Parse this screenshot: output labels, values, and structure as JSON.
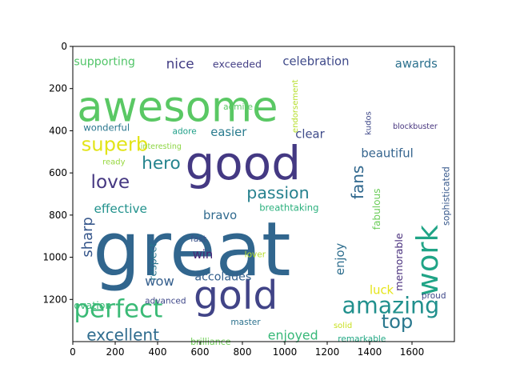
{
  "chart_data": {
    "type": "wordcloud",
    "title": "",
    "xlabel": "",
    "ylabel": "",
    "xlim": [
      0,
      1800
    ],
    "ylim": [
      1400,
      0
    ],
    "x_ticks": [
      "0",
      "200",
      "400",
      "600",
      "800",
      "1000",
      "1200",
      "1400",
      "1600"
    ],
    "y_ticks": [
      "0",
      "200",
      "400",
      "600",
      "800",
      "1000",
      "1200"
    ],
    "grid": false,
    "words": [
      {
        "text": "great",
        "x": 95,
        "y": 1085,
        "size": 355,
        "color": "#31668e",
        "vertical": false
      },
      {
        "text": "awesome",
        "x": 20,
        "y": 355,
        "size": 200,
        "color": "#5ac864",
        "vertical": false
      },
      {
        "text": "good",
        "x": 530,
        "y": 630,
        "size": 220,
        "color": "#443983",
        "vertical": false
      },
      {
        "text": "gold",
        "x": 570,
        "y": 1245,
        "size": 185,
        "color": "#414487",
        "vertical": false
      },
      {
        "text": "work",
        "x": 1720,
        "y": 1185,
        "size": 140,
        "color": "#20a486",
        "vertical": true
      },
      {
        "text": "perfect",
        "x": 5,
        "y": 1285,
        "size": 118,
        "color": "#3aba76",
        "vertical": false
      },
      {
        "text": "amazing",
        "x": 1270,
        "y": 1265,
        "size": 108,
        "color": "#21908d",
        "vertical": false
      },
      {
        "text": "top",
        "x": 1455,
        "y": 1335,
        "size": 92,
        "color": "#2a788e",
        "vertical": false
      },
      {
        "text": "superb",
        "x": 40,
        "y": 495,
        "size": 92,
        "color": "#e2e418",
        "vertical": false
      },
      {
        "text": "hero",
        "x": 325,
        "y": 580,
        "size": 82,
        "color": "#25848e",
        "vertical": false
      },
      {
        "text": "love",
        "x": 85,
        "y": 672,
        "size": 88,
        "color": "#453781",
        "vertical": false
      },
      {
        "text": "passion",
        "x": 820,
        "y": 720,
        "size": 78,
        "color": "#26818e",
        "vertical": false
      },
      {
        "text": "excellent",
        "x": 65,
        "y": 1395,
        "size": 76,
        "color": "#2f6c8e",
        "vertical": false
      },
      {
        "text": "nice",
        "x": 440,
        "y": 105,
        "size": 64,
        "color": "#433e85",
        "vertical": false
      },
      {
        "text": "fans",
        "x": 1370,
        "y": 725,
        "size": 76,
        "color": "#31688e",
        "vertical": true
      },
      {
        "text": "enjoyed",
        "x": 920,
        "y": 1390,
        "size": 60,
        "color": "#37b878",
        "vertical": false
      },
      {
        "text": "sharp",
        "x": 90,
        "y": 1000,
        "size": 68,
        "color": "#38588c",
        "vertical": true
      },
      {
        "text": "wow",
        "x": 340,
        "y": 1135,
        "size": 62,
        "color": "#355f8d",
        "vertical": false
      },
      {
        "text": "celebration",
        "x": 990,
        "y": 90,
        "size": 56,
        "color": "#3e4989",
        "vertical": false
      },
      {
        "text": "supporting",
        "x": 5,
        "y": 90,
        "size": 54,
        "color": "#52c569",
        "vertical": false
      },
      {
        "text": "awards",
        "x": 1520,
        "y": 100,
        "size": 56,
        "color": "#2c718e",
        "vertical": false
      },
      {
        "text": "beautiful",
        "x": 1360,
        "y": 525,
        "size": 56,
        "color": "#33638d",
        "vertical": false
      },
      {
        "text": "clear",
        "x": 1050,
        "y": 435,
        "size": 56,
        "color": "#3e4a89",
        "vertical": false
      },
      {
        "text": "easier",
        "x": 650,
        "y": 425,
        "size": 56,
        "color": "#297b8e",
        "vertical": false
      },
      {
        "text": "effective",
        "x": 100,
        "y": 790,
        "size": 58,
        "color": "#21918c",
        "vertical": false
      },
      {
        "text": "bravo",
        "x": 615,
        "y": 820,
        "size": 56,
        "color": "#306a8e",
        "vertical": false
      },
      {
        "text": "enjoy",
        "x": 1280,
        "y": 1085,
        "size": 56,
        "color": "#2e6e8e",
        "vertical": true
      },
      {
        "text": "accolades",
        "x": 575,
        "y": 1110,
        "size": 54,
        "color": "#34608d",
        "vertical": false
      },
      {
        "text": "respect",
        "x": 395,
        "y": 1110,
        "size": 48,
        "color": "#2a768e",
        "vertical": true
      },
      {
        "text": "win",
        "x": 565,
        "y": 1005,
        "size": 56,
        "color": "#482475",
        "vertical": false
      },
      {
        "text": "luck",
        "x": 1400,
        "y": 1175,
        "size": 56,
        "color": "#e5e419",
        "vertical": false
      },
      {
        "text": "memorable",
        "x": 1555,
        "y": 1160,
        "size": 48,
        "color": "#472d7b",
        "vertical": true
      },
      {
        "text": "fabulous",
        "x": 1450,
        "y": 870,
        "size": 46,
        "color": "#6ccd5a",
        "vertical": true
      },
      {
        "text": "ovation",
        "x": 5,
        "y": 1245,
        "size": 48,
        "color": "#3aba76",
        "vertical": false
      },
      {
        "text": "exceeded",
        "x": 660,
        "y": 100,
        "size": 48,
        "color": "#433e85",
        "vertical": false
      },
      {
        "text": "wonderful",
        "x": 50,
        "y": 400,
        "size": 44,
        "color": "#2a768e",
        "vertical": false
      },
      {
        "text": "sophisticated",
        "x": 1775,
        "y": 850,
        "size": 42,
        "color": "#38598c",
        "vertical": true
      },
      {
        "text": "breathtaking",
        "x": 880,
        "y": 780,
        "size": 44,
        "color": "#2cb17e",
        "vertical": false
      },
      {
        "text": "kudos",
        "x": 1405,
        "y": 420,
        "size": 38,
        "color": "#3f4889",
        "vertical": true
      },
      {
        "text": "endorsement",
        "x": 1060,
        "y": 410,
        "size": 38,
        "color": "#b5de2b",
        "vertical": true
      },
      {
        "text": "admire",
        "x": 710,
        "y": 300,
        "size": 40,
        "color": "#5ac864",
        "vertical": false
      },
      {
        "text": "adore",
        "x": 470,
        "y": 415,
        "size": 40,
        "color": "#1f9f88",
        "vertical": false
      },
      {
        "text": "blockbuster",
        "x": 1510,
        "y": 390,
        "size": 36,
        "color": "#46337e",
        "vertical": false
      },
      {
        "text": "interesting",
        "x": 320,
        "y": 485,
        "size": 36,
        "color": "#8ed645",
        "vertical": false
      },
      {
        "text": "ready",
        "x": 140,
        "y": 560,
        "size": 38,
        "color": "#97d83f",
        "vertical": false
      },
      {
        "text": "fast",
        "x": 555,
        "y": 925,
        "size": 40,
        "color": "#3b528b",
        "vertical": false
      },
      {
        "text": "lover",
        "x": 810,
        "y": 1000,
        "size": 40,
        "color": "#b5de2b",
        "vertical": false
      },
      {
        "text": "advanced",
        "x": 340,
        "y": 1220,
        "size": 40,
        "color": "#3f4889",
        "vertical": false
      },
      {
        "text": "master",
        "x": 745,
        "y": 1320,
        "size": 40,
        "color": "#2c728e",
        "vertical": false
      },
      {
        "text": "proud",
        "x": 1645,
        "y": 1195,
        "size": 40,
        "color": "#3f4889",
        "vertical": false
      },
      {
        "text": "solid",
        "x": 1230,
        "y": 1335,
        "size": 38,
        "color": "#c8e020",
        "vertical": false
      },
      {
        "text": "remarkable",
        "x": 1250,
        "y": 1400,
        "size": 40,
        "color": "#22a884",
        "vertical": false
      },
      {
        "text": "brilliance",
        "x": 555,
        "y": 1415,
        "size": 42,
        "color": "#70cf57",
        "vertical": false
      }
    ]
  }
}
